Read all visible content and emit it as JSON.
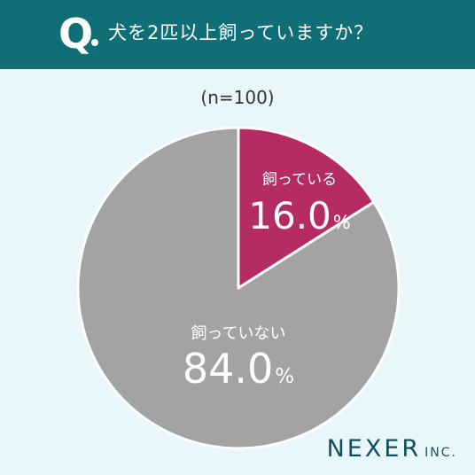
{
  "header": {
    "q_mark": "Q",
    "question": "犬を2匹以上飼っていますか？"
  },
  "sample_size": "(n=100)",
  "colors": {
    "header_bg": "#0f6e76",
    "background": "#e9f7fb",
    "keep": "#b52b64",
    "not_keep": "#a3a3a3"
  },
  "chart_data": {
    "type": "pie",
    "start": "12 o'clock, clockwise",
    "slices": [
      {
        "label": "飼っている",
        "value": 16.0,
        "value_text": "16.0",
        "unit": "%",
        "color": "#b52b64"
      },
      {
        "label": "飼っていない",
        "value": 84.0,
        "value_text": "84.0",
        "unit": "%",
        "color": "#a3a3a3"
      }
    ]
  },
  "brand": {
    "main": "NEXER",
    "sub": "INC."
  }
}
